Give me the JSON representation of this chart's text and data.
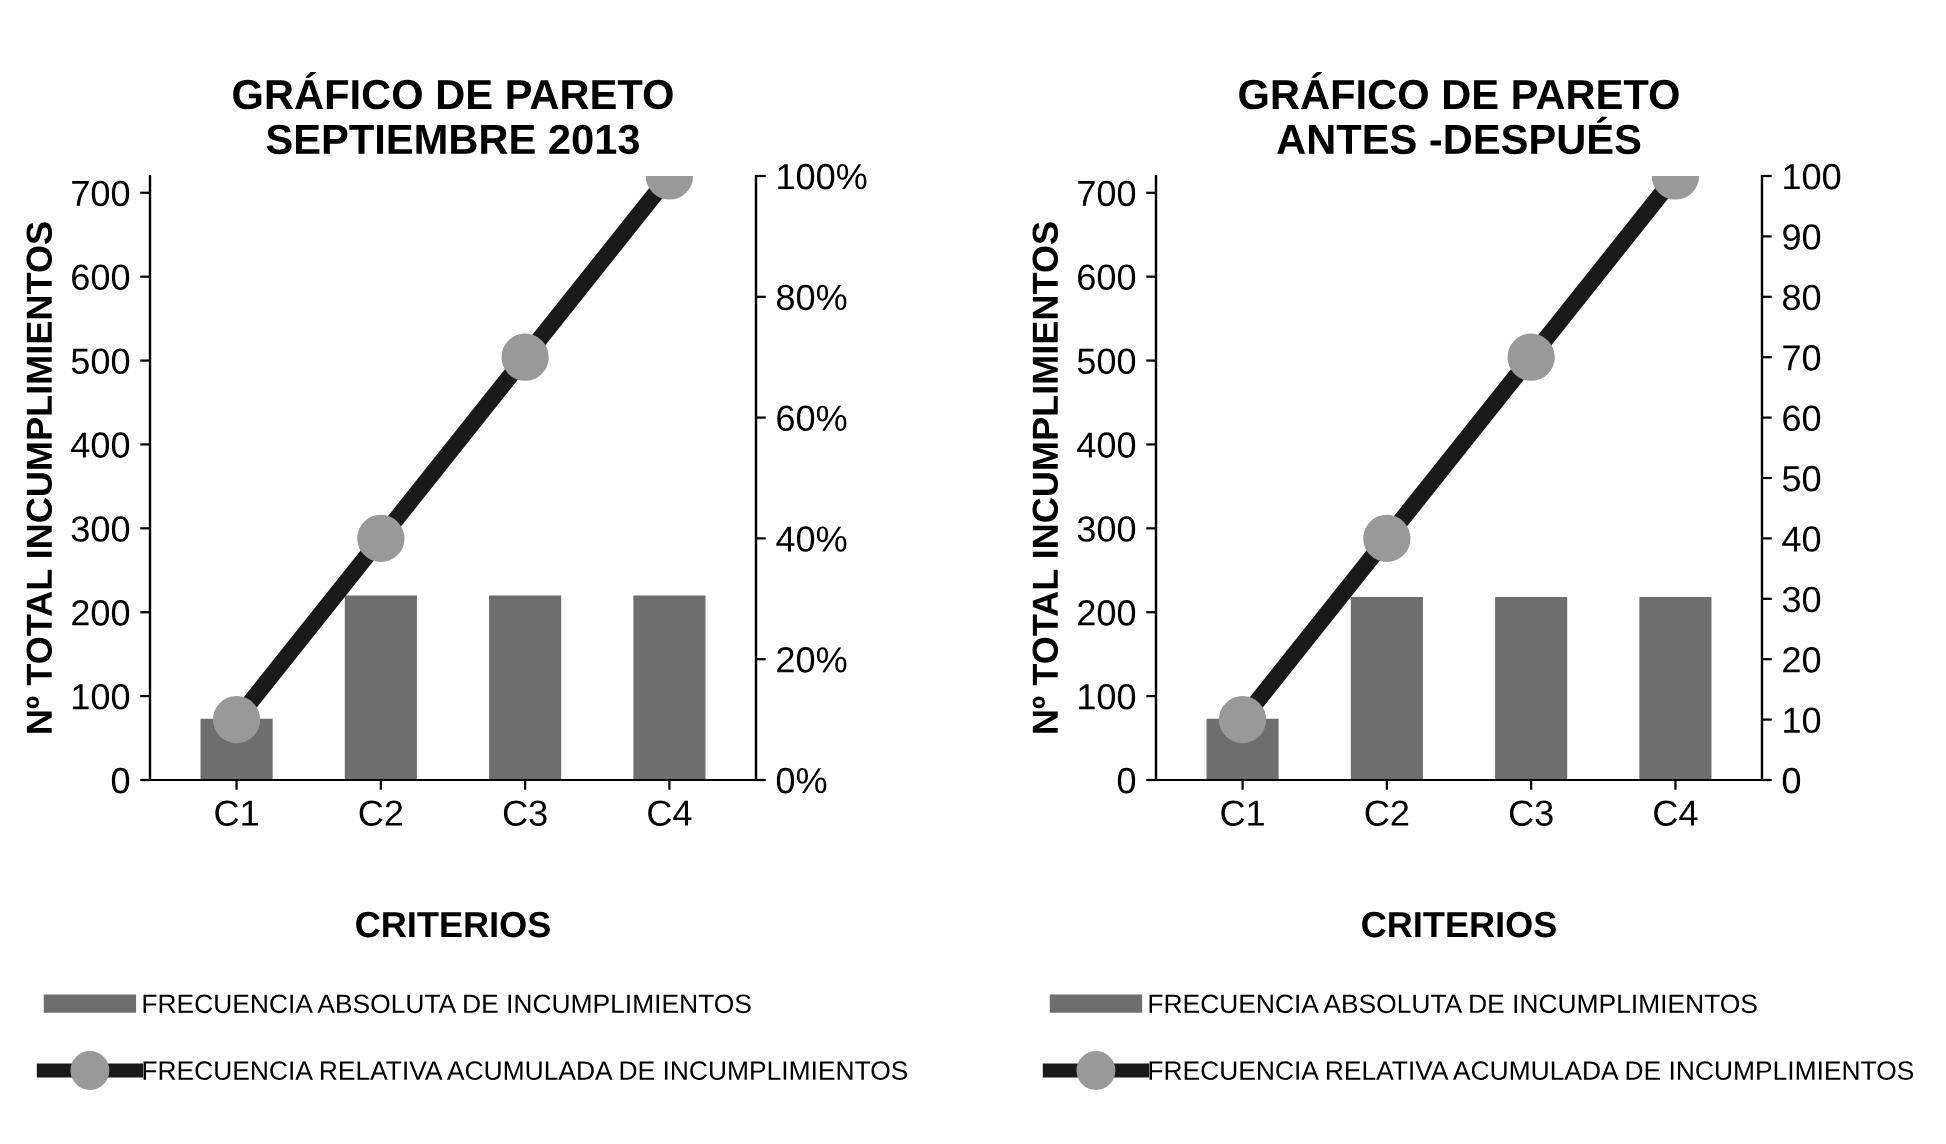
{
  "chart_data": [
    {
      "type": "bar",
      "title": "GRÁFICO DE PARETO\nSEPTIEMBRE 2013",
      "xlabel": "CRITERIOS",
      "ylabel": "Nº TOTAL INCUMPLIMIENTOS",
      "categories": [
        "C1",
        "C2",
        "C3",
        "C4"
      ],
      "series": [
        {
          "name": "FRECUENCIA ABSOLUTA DE INCUMPLIMIENTOS",
          "color": "#6e6e6e",
          "values": [
            73,
            220,
            220,
            220
          ]
        },
        {
          "name": "FRECUENCIA RELATIVA ACUMULADA DE INCUMPLIMIENTOS",
          "type": "line",
          "axis": "y2",
          "color": "#1a1a1a",
          "marker": "circle",
          "values": [
            10,
            40,
            70,
            100
          ]
        }
      ],
      "ylim": [
        0,
        720
      ],
      "yticks": [
        0,
        100,
        200,
        300,
        400,
        500,
        600,
        700
      ],
      "y2lim": [
        0,
        100
      ],
      "y2ticks": [
        {
          "value": 0,
          "label": "0%"
        },
        {
          "value": 20,
          "label": "20%"
        },
        {
          "value": 40,
          "label": "40%"
        },
        {
          "value": 60,
          "label": "60%"
        },
        {
          "value": 80,
          "label": "80%"
        },
        {
          "value": 100,
          "label": "100%"
        }
      ],
      "legend": "bottom",
      "grid": false
    },
    {
      "type": "bar",
      "title": "GRÁFICO DE PARETO\nANTES -DESPUÉS",
      "xlabel": "CRITERIOS",
      "ylabel": "Nº TOTAL INCUMPLIMIENTOS",
      "categories": [
        "C1",
        "C2",
        "C3",
        "C4"
      ],
      "series": [
        {
          "name": "FRECUENCIA ABSOLUTA DE INCUMPLIMIENTOS",
          "color": "#6e6e6e",
          "values": [
            73,
            218,
            218,
            218
          ]
        },
        {
          "name": "FRECUENCIA RELATIVA ACUMULADA DE INCUMPLIMIENTOS",
          "type": "line",
          "axis": "y2",
          "color": "#1a1a1a",
          "marker": "circle",
          "values": [
            10,
            40,
            70,
            100
          ]
        }
      ],
      "ylim": [
        0,
        720
      ],
      "yticks": [
        0,
        100,
        200,
        300,
        400,
        500,
        600,
        700
      ],
      "y2lim": [
        0,
        100
      ],
      "y2ticks": [
        0,
        10,
        20,
        30,
        40,
        50,
        60,
        70,
        80,
        90,
        100
      ],
      "legend": "bottom",
      "grid": false
    }
  ]
}
